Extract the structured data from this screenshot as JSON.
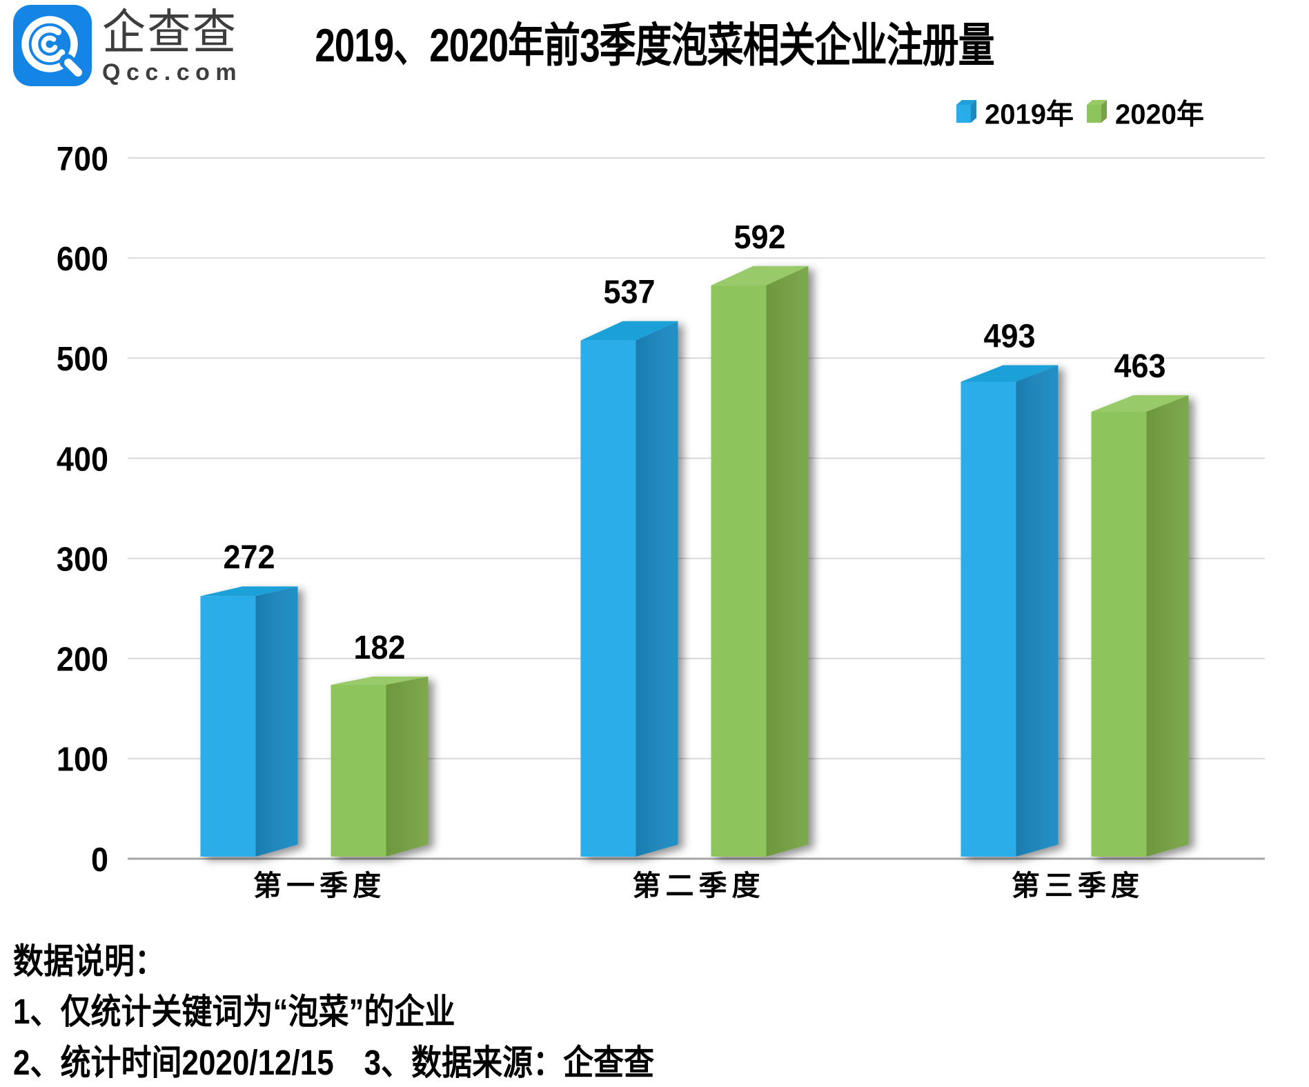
{
  "logo": {
    "name": "企查查",
    "domain": "Qcc.com",
    "icon": "qcc-magnifier-icon",
    "brand_color": "#1485e4"
  },
  "chart_data": {
    "type": "bar",
    "style": "3d-clustered-column",
    "title": "2019、2020年前3季度泡菜相关企业注册量",
    "categories": [
      "第一季度",
      "第二季度",
      "第三季度"
    ],
    "series": [
      {
        "name": "2019年",
        "values": [
          272,
          537,
          493
        ],
        "color": "#29ADE9",
        "color_side": "#2187BF",
        "color_top": "#1FA0D8"
      },
      {
        "name": "2020年",
        "values": [
          182,
          592,
          463
        ],
        "color": "#8DC45C",
        "color_side": "#78A149",
        "color_top": "#99CA6A"
      }
    ],
    "ylim": [
      0,
      700
    ],
    "ytick_step": 100,
    "yticks": [
      "0",
      "100",
      "200",
      "300",
      "400",
      "500",
      "600",
      "700"
    ],
    "xlabel": "",
    "ylabel": "",
    "grid": true,
    "grid_color": "#d9d9d9",
    "axis_color": "#a6a6a6",
    "legend_position": "top-right",
    "value_labels": true,
    "text_color": "#000000"
  },
  "notes": {
    "heading": "数据说明：",
    "line1": "1、仅统计关键词为“泡菜”的企业",
    "line2": "2、统计时间2020/12/15　3、数据来源：企查查"
  }
}
